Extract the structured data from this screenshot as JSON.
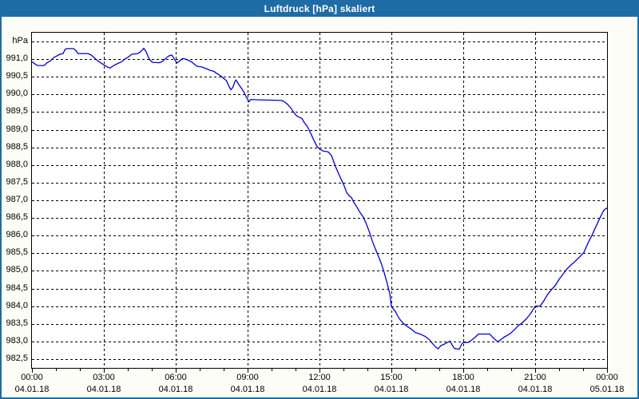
{
  "window": {
    "title": "Luftdruck [hPa] skaliert"
  },
  "colors": {
    "titlebar_bg": "#1f6ba5",
    "window_border": "#1f6ba5",
    "content_bg": "#fcfdf6",
    "plot_bg": "#ffffff",
    "plot_border": "#000000",
    "gridline": "#000000",
    "axis_text": "#000000",
    "title_text": "#ffffff",
    "series_line": "#0000cd"
  },
  "chart_data": {
    "type": "line",
    "title": "Luftdruck [hPa] skaliert",
    "grid": "on",
    "legend": "none",
    "y_axis": {
      "unit_label": "hPa",
      "min": 982.25,
      "max": 991.75,
      "gridline_step": 0.5,
      "tick_labels": [
        {
          "text": "991,0",
          "value": 991.0
        },
        {
          "text": "990,5",
          "value": 990.5
        },
        {
          "text": "990,0",
          "value": 990.0
        },
        {
          "text": "989,5",
          "value": 989.5
        },
        {
          "text": "989,0",
          "value": 989.0
        },
        {
          "text": "988,5",
          "value": 988.5
        },
        {
          "text": "988,0",
          "value": 988.0
        },
        {
          "text": "987,5",
          "value": 987.5
        },
        {
          "text": "987,0",
          "value": 987.0
        },
        {
          "text": "986,5",
          "value": 986.5
        },
        {
          "text": "986,0",
          "value": 986.0
        },
        {
          "text": "985,5",
          "value": 985.5
        },
        {
          "text": "985,0",
          "value": 985.0
        },
        {
          "text": "984,5",
          "value": 984.5
        },
        {
          "text": "984,0",
          "value": 984.0
        },
        {
          "text": "983,5",
          "value": 983.5
        },
        {
          "text": "983,0",
          "value": 983.0
        },
        {
          "text": "982,5",
          "value": 982.5
        }
      ]
    },
    "x_axis": {
      "end_minutes": 1440,
      "major_tick_hours": 3,
      "minor_tick_hours": 1,
      "tick_labels": [
        {
          "time": "00:00",
          "date": "04.01.18"
        },
        {
          "time": "03:00",
          "date": "04.01.18"
        },
        {
          "time": "06:00",
          "date": "04.01.18"
        },
        {
          "time": "09:00",
          "date": "04.01.18"
        },
        {
          "time": "12:00",
          "date": "04.01.18"
        },
        {
          "time": "15:00",
          "date": "04.01.18"
        },
        {
          "time": "18:00",
          "date": "04.01.18"
        },
        {
          "time": "21:00",
          "date": "04.01.18"
        },
        {
          "time": "00:00",
          "date": "05.01.18"
        }
      ]
    },
    "series": [
      {
        "name": "Luftdruck",
        "color": "#0000cd",
        "points": [
          [
            0,
            990.93
          ],
          [
            8,
            990.86
          ],
          [
            14,
            990.82
          ],
          [
            30,
            990.82
          ],
          [
            38,
            990.9
          ],
          [
            46,
            990.95
          ],
          [
            55,
            991.05
          ],
          [
            62,
            991.09
          ],
          [
            70,
            991.14
          ],
          [
            78,
            991.16
          ],
          [
            83,
            991.28
          ],
          [
            88,
            991.3
          ],
          [
            104,
            991.3
          ],
          [
            110,
            991.25
          ],
          [
            115,
            991.16
          ],
          [
            140,
            991.16
          ],
          [
            148,
            991.12
          ],
          [
            155,
            991.05
          ],
          [
            160,
            991.0
          ],
          [
            170,
            990.91
          ],
          [
            180,
            990.84
          ],
          [
            190,
            990.77
          ],
          [
            196,
            990.75
          ],
          [
            205,
            990.82
          ],
          [
            215,
            990.88
          ],
          [
            225,
            990.93
          ],
          [
            232,
            991.0
          ],
          [
            240,
            991.05
          ],
          [
            250,
            991.14
          ],
          [
            265,
            991.16
          ],
          [
            272,
            991.21
          ],
          [
            280,
            991.31
          ],
          [
            286,
            991.21
          ],
          [
            291,
            991.07
          ],
          [
            296,
            990.97
          ],
          [
            302,
            990.91
          ],
          [
            318,
            990.9
          ],
          [
            326,
            990.93
          ],
          [
            335,
            991.02
          ],
          [
            342,
            991.09
          ],
          [
            350,
            991.12
          ],
          [
            357,
            991.0
          ],
          [
            363,
            990.89
          ],
          [
            370,
            990.95
          ],
          [
            378,
            991.02
          ],
          [
            385,
            991.0
          ],
          [
            395,
            990.95
          ],
          [
            400,
            990.92
          ],
          [
            413,
            990.8
          ],
          [
            425,
            990.78
          ],
          [
            437,
            990.73
          ],
          [
            447,
            990.68
          ],
          [
            455,
            990.66
          ],
          [
            462,
            990.6
          ],
          [
            468,
            990.56
          ],
          [
            474,
            990.51
          ],
          [
            487,
            990.39
          ],
          [
            493,
            990.24
          ],
          [
            498,
            990.13
          ],
          [
            503,
            990.2
          ],
          [
            508,
            990.36
          ],
          [
            511,
            990.41
          ],
          [
            518,
            990.28
          ],
          [
            525,
            990.17
          ],
          [
            531,
            990.06
          ],
          [
            536,
            989.94
          ],
          [
            540,
            989.87
          ],
          [
            543,
            989.79
          ],
          [
            548,
            989.86
          ],
          [
            560,
            989.85
          ],
          [
            625,
            989.83
          ],
          [
            633,
            989.79
          ],
          [
            640,
            989.72
          ],
          [
            648,
            989.62
          ],
          [
            655,
            989.5
          ],
          [
            662,
            989.4
          ],
          [
            668,
            989.36
          ],
          [
            676,
            989.32
          ],
          [
            682,
            989.2
          ],
          [
            690,
            989.08
          ],
          [
            698,
            988.9
          ],
          [
            706,
            988.7
          ],
          [
            714,
            988.52
          ],
          [
            720,
            988.46
          ],
          [
            728,
            988.4
          ],
          [
            742,
            988.37
          ],
          [
            750,
            988.27
          ],
          [
            760,
            987.96
          ],
          [
            770,
            987.7
          ],
          [
            780,
            987.46
          ],
          [
            788,
            987.22
          ],
          [
            795,
            987.12
          ],
          [
            800,
            987.08
          ],
          [
            806,
            986.94
          ],
          [
            812,
            986.84
          ],
          [
            820,
            986.68
          ],
          [
            830,
            986.52
          ],
          [
            838,
            986.31
          ],
          [
            845,
            986.1
          ],
          [
            852,
            985.85
          ],
          [
            860,
            985.62
          ],
          [
            868,
            985.4
          ],
          [
            875,
            985.2
          ],
          [
            882,
            984.95
          ],
          [
            890,
            984.62
          ],
          [
            896,
            984.35
          ],
          [
            900,
            983.99
          ],
          [
            910,
            983.85
          ],
          [
            920,
            983.64
          ],
          [
            930,
            983.51
          ],
          [
            940,
            983.42
          ],
          [
            950,
            983.35
          ],
          [
            960,
            983.25
          ],
          [
            972,
            983.21
          ],
          [
            985,
            983.14
          ],
          [
            995,
            983.05
          ],
          [
            1003,
            982.94
          ],
          [
            1010,
            982.85
          ],
          [
            1017,
            982.79
          ],
          [
            1024,
            982.88
          ],
          [
            1032,
            982.92
          ],
          [
            1040,
            982.97
          ],
          [
            1047,
            983.01
          ],
          [
            1052,
            982.9
          ],
          [
            1058,
            982.8
          ],
          [
            1070,
            982.78
          ],
          [
            1076,
            982.92
          ],
          [
            1080,
            982.97
          ],
          [
            1092,
            982.97
          ],
          [
            1100,
            983.03
          ],
          [
            1110,
            983.12
          ],
          [
            1118,
            983.21
          ],
          [
            1146,
            983.21
          ],
          [
            1155,
            983.1
          ],
          [
            1162,
            983.03
          ],
          [
            1167,
            982.99
          ],
          [
            1174,
            983.05
          ],
          [
            1182,
            983.12
          ],
          [
            1196,
            983.21
          ],
          [
            1208,
            983.33
          ],
          [
            1218,
            983.45
          ],
          [
            1228,
            983.53
          ],
          [
            1238,
            983.64
          ],
          [
            1248,
            983.78
          ],
          [
            1256,
            983.92
          ],
          [
            1260,
            984.0
          ],
          [
            1272,
            984.0
          ],
          [
            1280,
            984.12
          ],
          [
            1290,
            984.31
          ],
          [
            1300,
            984.46
          ],
          [
            1310,
            984.58
          ],
          [
            1320,
            984.76
          ],
          [
            1330,
            984.91
          ],
          [
            1340,
            985.06
          ],
          [
            1350,
            985.17
          ],
          [
            1360,
            985.27
          ],
          [
            1372,
            985.4
          ],
          [
            1382,
            985.52
          ],
          [
            1388,
            985.68
          ],
          [
            1395,
            985.85
          ],
          [
            1402,
            986.0
          ],
          [
            1409,
            986.18
          ],
          [
            1416,
            986.35
          ],
          [
            1423,
            986.52
          ],
          [
            1430,
            986.68
          ],
          [
            1435,
            986.75
          ],
          [
            1440,
            986.78
          ]
        ]
      }
    ]
  }
}
